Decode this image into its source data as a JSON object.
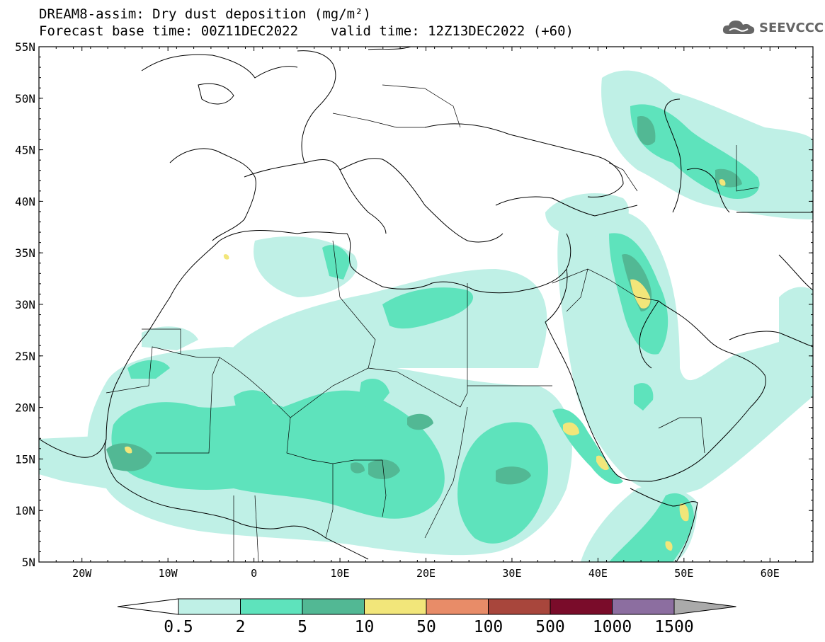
{
  "title": {
    "line1": "DREAM8-assim: Dry dust deposition (mg/m²)",
    "line2": "Forecast base time: 00Z11DEC2022    valid time: 12Z13DEC2022 (+60)"
  },
  "logo": {
    "text": "SEEVCCC",
    "icon": "cloud-icon"
  },
  "map": {
    "lat_labels": [
      "55N",
      "50N",
      "45N",
      "40N",
      "35N",
      "30N",
      "25N",
      "20N",
      "15N",
      "10N",
      "5N"
    ],
    "lon_labels": [
      "20W",
      "10W",
      "0",
      "10E",
      "20E",
      "30E",
      "40E",
      "50E",
      "60E"
    ],
    "extent": {
      "lon_min": -25,
      "lon_max": 65,
      "lat_min": 5,
      "lat_max": 55
    }
  },
  "legend": {
    "labels": [
      "0.5",
      "2",
      "5",
      "10",
      "50",
      "100",
      "500",
      "1000",
      "1500"
    ],
    "colors": [
      "#bff0e6",
      "#5ee3bc",
      "#52b894",
      "#f2e67a",
      "#e88c68",
      "#a8463c",
      "#7a0c2a",
      "#8c6ea0",
      "#aaaaaa"
    ],
    "under_color": "#ffffff"
  }
}
